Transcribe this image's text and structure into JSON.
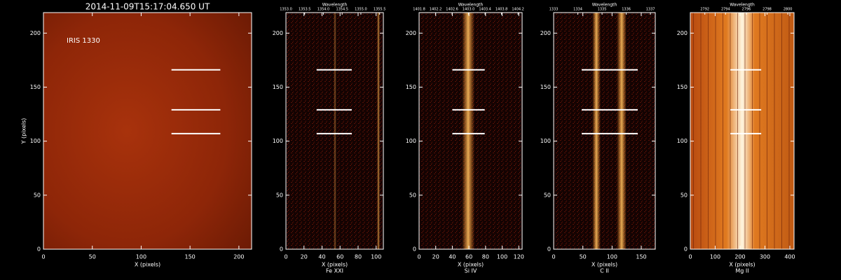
{
  "chart_data": [
    {
      "type": "image",
      "title": "2014-11-09T15:17:04.650 UT",
      "label": "IRIS 1330",
      "xlabel": "X (pixels)",
      "ylabel": "Y (pixels)",
      "xlim": [
        0,
        213
      ],
      "ylim": [
        0,
        219
      ],
      "xticks": [
        0,
        50,
        100,
        150,
        200
      ],
      "yticks": [
        0,
        50,
        100,
        150,
        200
      ],
      "marks": [
        {
          "y": 166,
          "x": [
            131,
            181
          ]
        },
        {
          "y": 129,
          "x": [
            131,
            181
          ]
        },
        {
          "y": 107,
          "x": [
            131,
            181
          ]
        }
      ]
    },
    {
      "type": "image",
      "xlabel": "X (pixels)",
      "sublabel": "Fe XXI",
      "x2label": "Wavelength",
      "xlim": [
        0,
        108
      ],
      "ylim": [
        0,
        219
      ],
      "xticks": [
        0,
        20,
        40,
        60,
        80,
        100
      ],
      "yticks": [
        0,
        50,
        100,
        150,
        200
      ],
      "x2lim": [
        1353.0,
        1355.6
      ],
      "x2ticks": [
        {
          "value": 1353.0,
          "label": "1353.0"
        },
        {
          "value": 1353.5,
          "label": "1353.5"
        },
        {
          "value": 1354.0,
          "label": "1354.0"
        },
        {
          "value": 1354.5,
          "label": "1354.5"
        },
        {
          "value": 1355.0,
          "label": "1355.0"
        },
        {
          "value": 1355.5,
          "label": "1355.5"
        }
      ],
      "marks": [
        {
          "y": 166,
          "x": [
            34,
            73
          ]
        },
        {
          "y": 129,
          "x": [
            34,
            73
          ]
        },
        {
          "y": 107,
          "x": [
            34,
            73
          ]
        }
      ]
    },
    {
      "type": "image",
      "xlabel": "X (pixels)",
      "sublabel": "Si IV",
      "x2label": "Wavelength",
      "xlim": [
        0,
        124
      ],
      "ylim": [
        0,
        219
      ],
      "xticks": [
        0,
        20,
        40,
        60,
        80,
        100,
        120
      ],
      "yticks": [
        0,
        50,
        100,
        150,
        200
      ],
      "x2lim": [
        1401.8,
        1404.3
      ],
      "x2ticks": [
        {
          "value": 1401.8,
          "label": "1401.8"
        },
        {
          "value": 1402.2,
          "label": "1402.2"
        },
        {
          "value": 1402.6,
          "label": "1402.6"
        },
        {
          "value": 1403.0,
          "label": "1403.0"
        },
        {
          "value": 1403.4,
          "label": "1403.4"
        },
        {
          "value": 1403.8,
          "label": "1403.8"
        },
        {
          "value": 1404.2,
          "label": "1404.2"
        }
      ],
      "marks": [
        {
          "y": 166,
          "x": [
            40,
            79
          ]
        },
        {
          "y": 129,
          "x": [
            40,
            79
          ]
        },
        {
          "y": 107,
          "x": [
            40,
            79
          ]
        }
      ]
    },
    {
      "type": "image",
      "xlabel": "X (pixels)",
      "sublabel": "C II",
      "x2label": "Wavelength",
      "xlim": [
        0,
        174
      ],
      "ylim": [
        0,
        219
      ],
      "xticks": [
        0,
        50,
        100,
        150
      ],
      "yticks": [
        0,
        50,
        100,
        150,
        200
      ],
      "x2lim": [
        1333,
        1337.2
      ],
      "x2ticks": [
        1333,
        1334,
        1335,
        1336,
        1337
      ],
      "marks": [
        {
          "y": 166,
          "x": [
            48,
            144
          ]
        },
        {
          "y": 129,
          "x": [
            48,
            144
          ]
        },
        {
          "y": 107,
          "x": [
            48,
            144
          ]
        }
      ]
    },
    {
      "type": "image",
      "xlabel": "X (pixels)",
      "sublabel": "Mg II",
      "x2label": "Wavelength",
      "xlim": [
        0,
        417
      ],
      "ylim": [
        0,
        219
      ],
      "xticks": [
        0,
        100,
        200,
        300,
        400
      ],
      "yticks": [
        0,
        50,
        100,
        150,
        200
      ],
      "x2lim": [
        2790.6,
        2800.6
      ],
      "x2ticks": [
        2792,
        2794,
        2796,
        2798,
        2800
      ],
      "marks": [
        {
          "y": 166,
          "x": [
            161,
            285
          ]
        },
        {
          "y": 129,
          "x": [
            161,
            285
          ]
        },
        {
          "y": 107,
          "x": [
            161,
            285
          ]
        }
      ]
    }
  ]
}
